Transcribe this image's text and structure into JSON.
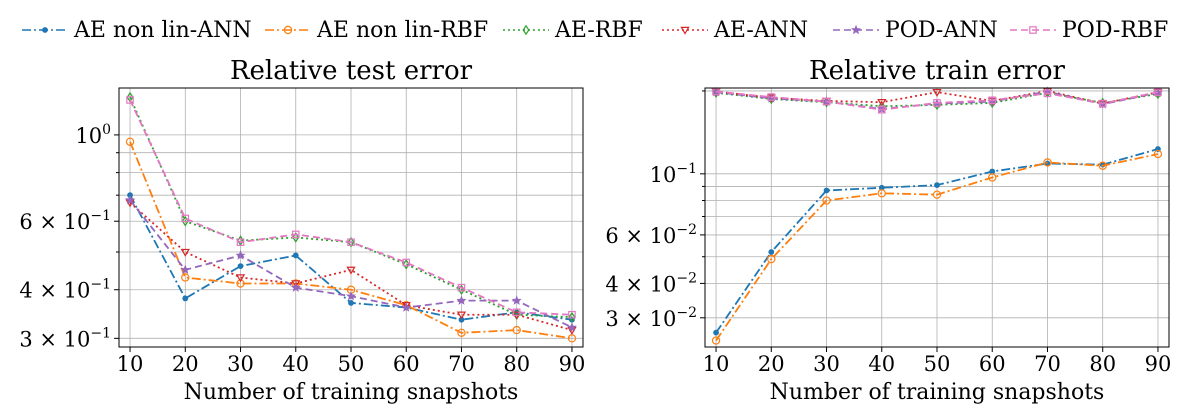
{
  "legend": [
    {
      "name": "AE non lin-ANN",
      "color": "#1f77b4",
      "dash": "9,3,2,3",
      "marker": "dot"
    },
    {
      "name": "AE non lin-RBF",
      "color": "#ff7f0e",
      "dash": "9,3,2,3",
      "marker": "circle"
    },
    {
      "name": "AE-RBF",
      "color": "#2ca02c",
      "dash": "2,3",
      "marker": "diamond"
    },
    {
      "name": "AE-ANN",
      "color": "#d62728",
      "dash": "2,3",
      "marker": "triangle"
    },
    {
      "name": "POD-ANN",
      "color": "#9467bd",
      "dash": "7,4",
      "marker": "star"
    },
    {
      "name": "POD-RBF",
      "color": "#e377c2",
      "dash": "7,4",
      "marker": "square"
    }
  ],
  "chart_data": [
    {
      "type": "line",
      "title": "Relative test error",
      "xlabel": "Number of training snapshots",
      "ylabel": "",
      "yscale": "log",
      "xlim": [
        8,
        92
      ],
      "ylim": [
        0.285,
        1.32
      ],
      "x": [
        10,
        20,
        30,
        40,
        50,
        60,
        70,
        80,
        90
      ],
      "x_ticks": [
        "10",
        "20",
        "30",
        "40",
        "50",
        "60",
        "70",
        "80",
        "90"
      ],
      "y_ticks": [
        {
          "value": 1.0,
          "label": "10",
          "exp": "0"
        },
        {
          "value": 0.6,
          "label": "6 × 10",
          "exp": "−1"
        },
        {
          "value": 0.4,
          "label": "4 × 10",
          "exp": "−1"
        },
        {
          "value": 0.3,
          "label": "3 × 10",
          "exp": "−1"
        }
      ],
      "minor_y": [
        0.5,
        0.7,
        0.8,
        0.9
      ],
      "series": [
        {
          "name": "AE non lin-ANN",
          "values": [
            0.7,
            0.38,
            0.46,
            0.49,
            0.37,
            0.36,
            0.335,
            0.35,
            0.335
          ]
        },
        {
          "name": "AE non lin-RBF",
          "values": [
            0.96,
            0.43,
            0.415,
            0.415,
            0.4,
            0.365,
            0.31,
            0.315,
            0.3
          ]
        },
        {
          "name": "AE-RBF",
          "values": [
            1.25,
            0.6,
            0.535,
            0.545,
            0.53,
            0.465,
            0.4,
            0.345,
            0.34
          ]
        },
        {
          "name": "AE-ANN",
          "values": [
            0.67,
            0.5,
            0.43,
            0.415,
            0.45,
            0.365,
            0.345,
            0.345,
            0.315
          ]
        },
        {
          "name": "POD-ANN",
          "values": [
            0.68,
            0.45,
            0.49,
            0.405,
            0.385,
            0.36,
            0.375,
            0.375,
            0.32
          ]
        },
        {
          "name": "POD-RBF",
          "values": [
            1.23,
            0.61,
            0.53,
            0.555,
            0.53,
            0.47,
            0.405,
            0.35,
            0.345
          ]
        }
      ]
    },
    {
      "type": "line",
      "title": "Relative train error",
      "xlabel": "Number of training snapshots",
      "ylabel": "",
      "yscale": "log",
      "xlim": [
        8,
        92
      ],
      "ylim": [
        0.0235,
        0.205
      ],
      "x": [
        10,
        20,
        30,
        40,
        50,
        60,
        70,
        80,
        90
      ],
      "x_ticks": [
        "10",
        "20",
        "30",
        "40",
        "50",
        "60",
        "70",
        "80",
        "90"
      ],
      "y_ticks": [
        {
          "value": 0.1,
          "label": "10",
          "exp": "−1"
        },
        {
          "value": 0.06,
          "label": "6 × 10",
          "exp": "−2"
        },
        {
          "value": 0.04,
          "label": "4 × 10",
          "exp": "−2"
        },
        {
          "value": 0.03,
          "label": "3 × 10",
          "exp": "−2"
        }
      ],
      "minor_y": [
        0.05,
        0.07,
        0.08,
        0.09,
        0.2
      ],
      "series": [
        {
          "name": "AE non lin-ANN",
          "values": [
            0.0265,
            0.052,
            0.087,
            0.089,
            0.091,
            0.102,
            0.109,
            0.108,
            0.123
          ]
        },
        {
          "name": "AE non lin-RBF",
          "values": [
            0.0248,
            0.049,
            0.08,
            0.085,
            0.084,
            0.097,
            0.11,
            0.107,
            0.118
          ]
        },
        {
          "name": "AE-RBF",
          "values": [
            0.197,
            0.187,
            0.182,
            0.176,
            0.178,
            0.181,
            0.197,
            0.181,
            0.195
          ]
        },
        {
          "name": "AE-ANN",
          "values": [
            0.199,
            0.189,
            0.184,
            0.182,
            0.198,
            0.184,
            0.2,
            0.18,
            0.198
          ]
        },
        {
          "name": "POD-ANN",
          "values": [
            0.198,
            0.188,
            0.183,
            0.172,
            0.18,
            0.183,
            0.199,
            0.179,
            0.197
          ]
        },
        {
          "name": "POD-RBF",
          "values": [
            0.199,
            0.19,
            0.183,
            0.171,
            0.181,
            0.185,
            0.196,
            0.18,
            0.198
          ]
        }
      ]
    }
  ]
}
